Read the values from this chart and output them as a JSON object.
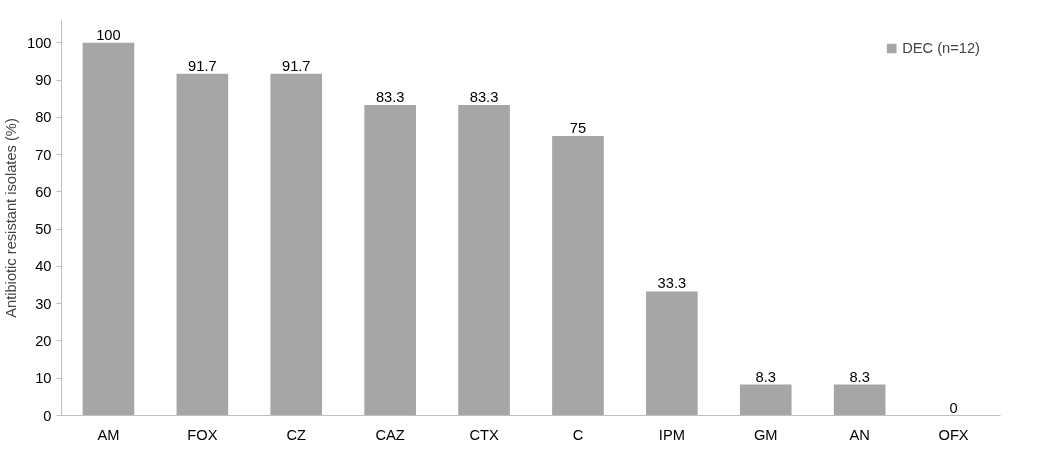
{
  "chart_data": {
    "type": "bar",
    "ylabel": "Antibiotic resistant isolates (%)",
    "categories": [
      "AM",
      "FOX",
      "CZ",
      "CAZ",
      "CTX",
      "C",
      "IPM",
      "GM",
      "AN",
      "OFX"
    ],
    "series": [
      {
        "name": "DEC (n=12)",
        "color": "#a6a6a6",
        "values": [
          100,
          91.7,
          91.7,
          83.3,
          83.3,
          75,
          33.3,
          8.3,
          8.3,
          0
        ]
      }
    ],
    "ylim": [
      0,
      100
    ],
    "yticks": [
      0,
      10,
      20,
      30,
      40,
      50,
      60,
      70,
      80,
      90,
      100
    ],
    "grid": false,
    "legend": "top right",
    "data_labels": true
  }
}
